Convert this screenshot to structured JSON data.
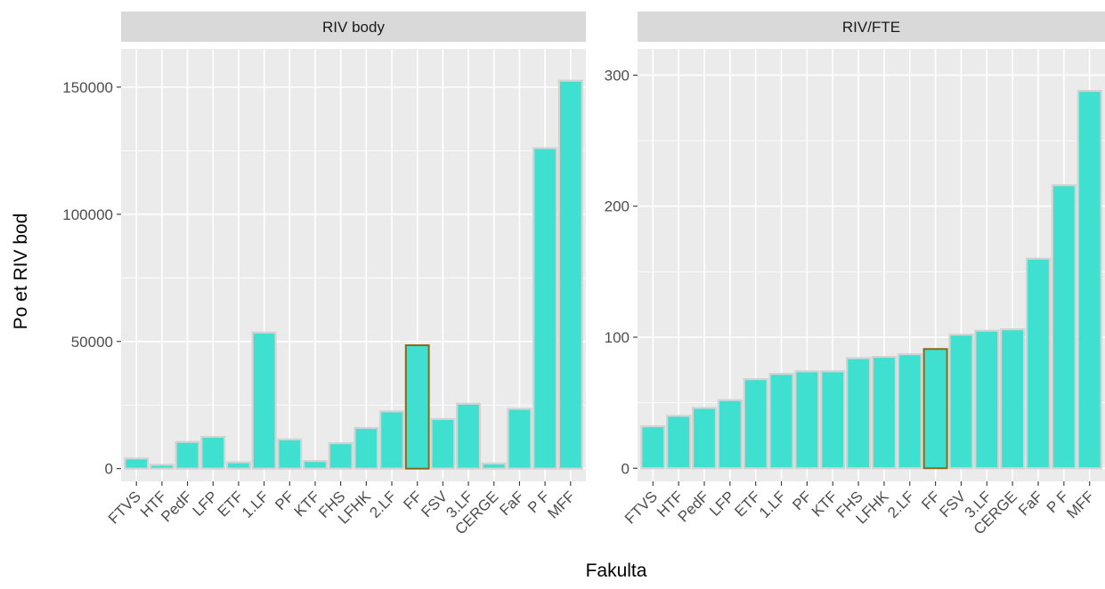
{
  "chart_data": {
    "type": "bar",
    "xlabel": "Fakulta",
    "ylabel": "Po  et RIV bod",
    "colors": {
      "fill": "#40e0d0",
      "outline": "#d3d3d3",
      "highlight_outline": "#8b6914"
    },
    "highlight_category": "FF",
    "panels": [
      {
        "title": "RIV body",
        "ylim": [
          -5000,
          165000
        ],
        "yticks": [
          0,
          50000,
          100000,
          150000
        ],
        "categories": [
          "FTVS",
          "HTF",
          "PedF",
          "LFP",
          "ETF",
          "1.LF",
          "PF",
          "KTF",
          "FHS",
          "LFHK",
          "2.LF",
          "FF",
          "FSV",
          "3.LF",
          "CERGE",
          "FaF",
          "P F",
          "MFF"
        ],
        "values": [
          4000,
          1500,
          10500,
          12500,
          2500,
          53500,
          11500,
          3000,
          10000,
          16000,
          22500,
          48500,
          19500,
          25500,
          2000,
          23500,
          126000,
          152500
        ]
      },
      {
        "title": "RIV/FTE",
        "ylim": [
          -10,
          320
        ],
        "yticks": [
          0,
          100,
          200,
          300
        ],
        "categories": [
          "FTVS",
          "HTF",
          "PedF",
          "LFP",
          "ETF",
          "1.LF",
          "PF",
          "KTF",
          "FHS",
          "LFHK",
          "2.LF",
          "FF",
          "FSV",
          "3.LF",
          "CERGE",
          "FaF",
          "P F",
          "MFF"
        ],
        "values": [
          32,
          40,
          46,
          52,
          68,
          72,
          74,
          74,
          84,
          85,
          87,
          91,
          102,
          105,
          106,
          160,
          216,
          288
        ]
      }
    ]
  }
}
